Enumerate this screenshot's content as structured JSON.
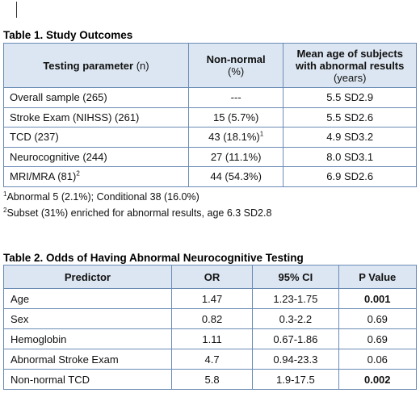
{
  "table1": {
    "caption": "Table 1. Study Outcomes",
    "headers": {
      "param": "Testing parameter",
      "param_n": "(n)",
      "nonnormal_line1": "Non-normal",
      "nonnormal_line2": "(%)",
      "meanage_line1": "Mean age of subjects",
      "meanage_line2": "with abnormal results",
      "meanage_line3": "(years)"
    },
    "rows": [
      {
        "param": "Overall sample (265)",
        "param_sup": "",
        "nonnormal": "---",
        "nonnormal_sup": "",
        "meanage": "5.5 SD2.9"
      },
      {
        "param": "Stroke Exam (NIHSS) (261)",
        "param_sup": "",
        "nonnormal": "15 (5.7%)",
        "nonnormal_sup": "",
        "meanage": "5.5 SD2.6"
      },
      {
        "param": "TCD (237)",
        "param_sup": "",
        "nonnormal": "43 (18.1%)",
        "nonnormal_sup": "1",
        "meanage": "4.9 SD3.2"
      },
      {
        "param": "Neurocognitive (244)",
        "param_sup": "",
        "nonnormal": "27 (11.1%)",
        "nonnormal_sup": "",
        "meanage": "8.0 SD3.1"
      },
      {
        "param": "MRI/MRA (81)",
        "param_sup": "2",
        "nonnormal": "44 (54.3%)",
        "nonnormal_sup": "",
        "meanage": "6.9 SD2.6"
      }
    ],
    "notes": [
      {
        "sup": "1",
        "text": "Abnormal 5 (2.1%); Conditional 38 (16.0%)"
      },
      {
        "sup": "2",
        "text": "Subset (31%) enriched for abnormal results, age 6.3 SD2.8"
      }
    ]
  },
  "table2": {
    "caption": "Table 2. Odds of Having Abnormal Neurocognitive Testing",
    "headers": {
      "predictor": "Predictor",
      "or": "OR",
      "ci": "95% CI",
      "p": "P Value"
    },
    "rows": [
      {
        "predictor": "Age",
        "or": "1.47",
        "ci": "1.23-1.75",
        "p": "0.001",
        "p_bold": true
      },
      {
        "predictor": "Sex",
        "or": "0.82",
        "ci": "0.3-2.2",
        "p": "0.69",
        "p_bold": false
      },
      {
        "predictor": "Hemoglobin",
        "or": "1.11",
        "ci": "0.67-1.86",
        "p": "0.69",
        "p_bold": false
      },
      {
        "predictor": "Abnormal Stroke Exam",
        "or": "4.7",
        "ci": "0.94-23.3",
        "p": "0.06",
        "p_bold": false
      },
      {
        "predictor": "Non-normal TCD",
        "or": "5.8",
        "ci": "1.9-17.5",
        "p": "0.002",
        "p_bold": true
      }
    ]
  }
}
